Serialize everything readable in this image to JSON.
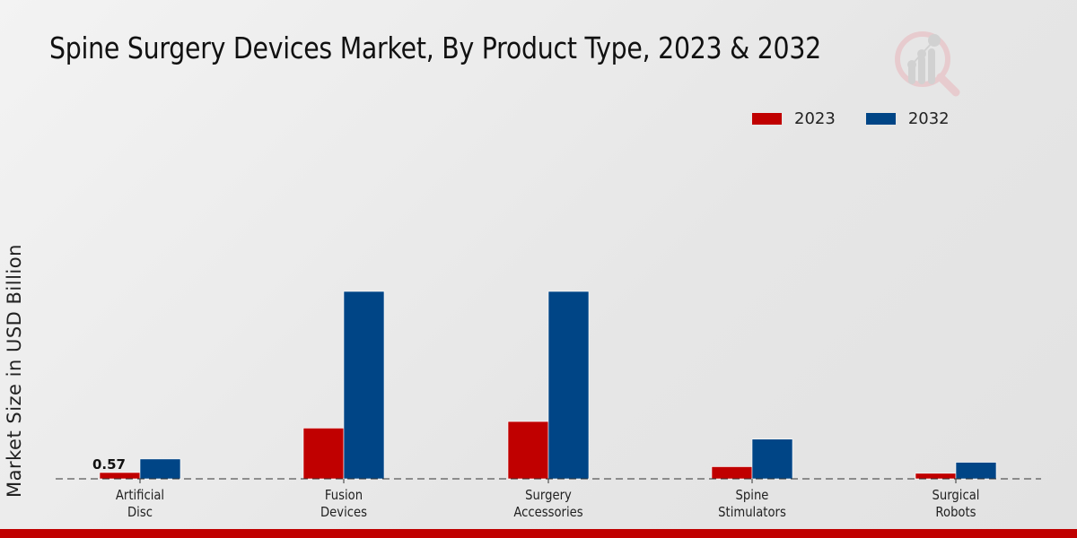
{
  "title": "Spine Surgery Devices Market, By Product Type, 2023 & 2032",
  "logo": {
    "icon": "magnifier-bar-chart-logo-icon"
  },
  "colors": {
    "series_2023": "#c00000",
    "series_2032": "#004586",
    "footer": "#c00000"
  },
  "chart_data": {
    "type": "bar",
    "title": "Spine Surgery Devices Market, By Product Type, 2023 & 2032",
    "xlabel": "",
    "ylabel": "Market Size in USD Billion",
    "categories": [
      "Artificial\nDisc",
      "Fusion\nDevices",
      "Surgery\nAccessories",
      "Spine\nStimulators",
      "Surgical\nRobots"
    ],
    "series": [
      {
        "name": "2023",
        "color": "#c00000",
        "values": [
          0.57,
          4.6,
          5.2,
          1.1,
          0.5
        ]
      },
      {
        "name": "2032",
        "color": "#004586",
        "values": [
          1.8,
          17.0,
          17.0,
          3.6,
          1.5
        ]
      }
    ],
    "data_labels": [
      {
        "series": "2023",
        "category_index": 0,
        "text": "0.57"
      }
    ],
    "ylim": [
      0,
      25
    ],
    "grid": false,
    "baseline": "dashed",
    "legend_position": "top-right"
  }
}
